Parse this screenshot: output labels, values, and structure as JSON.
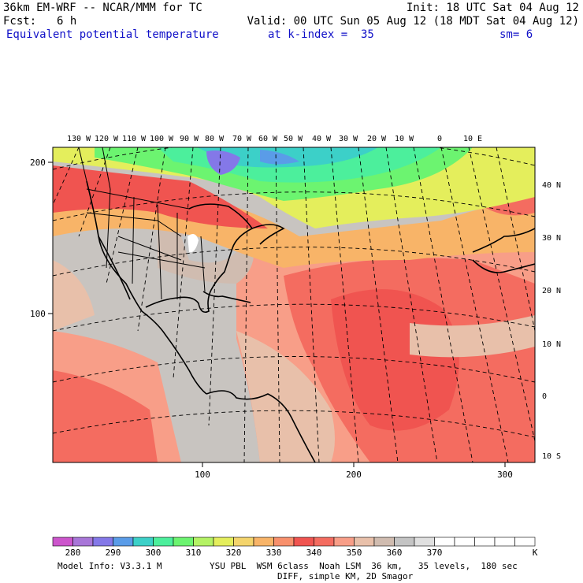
{
  "header": {
    "model": "36km EM-WRF -- NCAR/MMM for TC",
    "init": "Init: 18 UTC Sat 04 Aug 12",
    "fcst_label": "Fcst:",
    "fcst_value": "6 h",
    "valid": "Valid: 00 UTC Sun 05 Aug 12 (18 MDT Sat 04 Aug 12)",
    "field": "Equivalent potential temperature",
    "level": "at k-index =  35",
    "smooth": "sm= 6"
  },
  "map": {
    "lon_labels": [
      "130 W",
      "120 W",
      "110 W",
      "100 W",
      "90 W",
      "80 W",
      "70 W",
      "60 W",
      "50 W",
      "40 W",
      "30 W",
      "20 W",
      "10 W",
      "0",
      "10 E"
    ],
    "lat_labels": [
      "40 N",
      "30 N",
      "20 N",
      "10 N",
      "0",
      "10 S"
    ],
    "grid_y_labels": [
      "200",
      "100"
    ],
    "grid_x_labels": [
      "100",
      "200",
      "300"
    ]
  },
  "colorbar": {
    "labels": [
      "280",
      "290",
      "300",
      "310",
      "320",
      "330",
      "340",
      "350",
      "360",
      "370"
    ],
    "unit": "K",
    "colors": [
      "#cc55cc",
      "#a876d8",
      "#8478e8",
      "#5a9ce8",
      "#3cd0c8",
      "#4cef9c",
      "#6cf470",
      "#b4f264",
      "#e4ee5c",
      "#f4d46c",
      "#f8b468",
      "#f8906c",
      "#f05450",
      "#f46c60",
      "#f89e88",
      "#e8c0aa",
      "#d0bcb0",
      "#c4c4c4",
      "#e0e0e0",
      "#ffffff",
      "#ffffff",
      "#ffffff",
      "#ffffff",
      "#ffffff"
    ]
  },
  "footer": {
    "model_info": "Model Info: V3.3.1 M",
    "physics": "YSU PBL  WSM 6class  Noah LSM  36 km,   35 levels,  180 sec",
    "diff": "DIFF, simple KM, 2D Smagor"
  }
}
